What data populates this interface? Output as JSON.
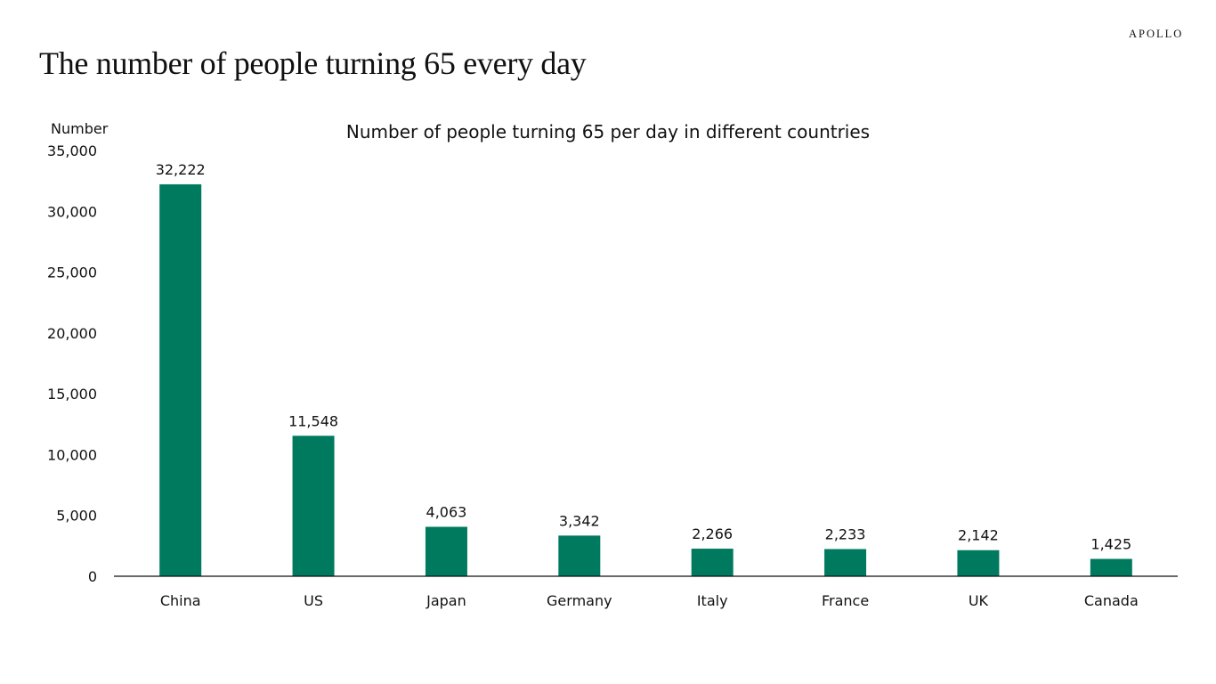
{
  "header": {
    "title": "The number of people turning 65 every day",
    "logo": "APOLLO"
  },
  "chart_data": {
    "type": "bar",
    "title": "Number of people turning 65 per day in different countries",
    "ylabel": "Number",
    "xlabel": "",
    "categories": [
      "China",
      "US",
      "Japan",
      "Germany",
      "Italy",
      "France",
      "UK",
      "Canada"
    ],
    "values": [
      32222,
      11548,
      4063,
      3342,
      2266,
      2233,
      2142,
      1425
    ],
    "data_labels": [
      "32,222",
      "11,548",
      "4,063",
      "3,342",
      "2,266",
      "2,233",
      "2,142",
      "1,425"
    ],
    "ylim": [
      0,
      35000
    ],
    "yticks": [
      0,
      5000,
      10000,
      15000,
      20000,
      25000,
      30000,
      35000
    ],
    "ytick_labels": [
      "0",
      "5,000",
      "10,000",
      "15,000",
      "20,000",
      "25,000",
      "30,000",
      "35,000"
    ],
    "grid": false,
    "bar_color": "#007A5E"
  }
}
